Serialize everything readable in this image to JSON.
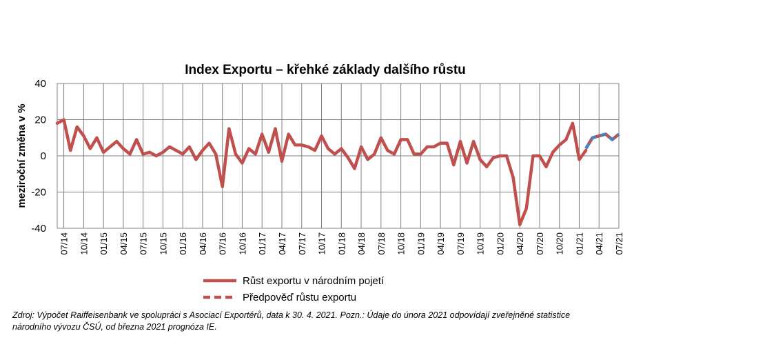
{
  "chart_data": {
    "type": "line",
    "title": "Index Exportu – křehké základy dalšího růstu",
    "ylabel": "meziroční změna v %",
    "xlabel": "",
    "ylim": [
      -40,
      40
    ],
    "yticks": [
      "40",
      "20",
      "0",
      "-20",
      "-40"
    ],
    "xticks": [
      "07/14",
      "10/14",
      "01/15",
      "04/15",
      "07/15",
      "10/15",
      "01/16",
      "04/16",
      "07/16",
      "10/16",
      "01/17",
      "04/17",
      "07/17",
      "10/17",
      "01/18",
      "04/18",
      "07/18",
      "10/18",
      "01/19",
      "04/19",
      "07/19",
      "10/19",
      "01/20",
      "04/20",
      "07/20",
      "10/20",
      "01/21",
      "04/21",
      "07/21"
    ],
    "grid": "vertical and horizontal",
    "legend_position": "bottom",
    "colors": {
      "actual": "#C0504D",
      "forecast": "#4F81BD"
    },
    "series": [
      {
        "name": "Růst exportu v národním pojetí",
        "style": "solid",
        "x": [
          "06/14",
          "07/14",
          "08/14",
          "09/14",
          "10/14",
          "11/14",
          "12/14",
          "01/15",
          "02/15",
          "03/15",
          "04/15",
          "05/15",
          "06/15",
          "07/15",
          "08/15",
          "09/15",
          "10/15",
          "11/15",
          "12/15",
          "01/16",
          "02/16",
          "03/16",
          "04/16",
          "05/16",
          "06/16",
          "07/16",
          "08/16",
          "09/16",
          "10/16",
          "11/16",
          "12/16",
          "01/17",
          "02/17",
          "03/17",
          "04/17",
          "05/17",
          "06/17",
          "07/17",
          "08/17",
          "09/17",
          "10/17",
          "11/17",
          "12/17",
          "01/18",
          "02/18",
          "03/18",
          "04/18",
          "05/18",
          "06/18",
          "07/18",
          "08/18",
          "09/18",
          "10/18",
          "11/18",
          "12/18",
          "01/19",
          "02/19",
          "03/19",
          "04/19",
          "05/19",
          "06/19",
          "07/19",
          "08/19",
          "09/19",
          "10/19",
          "11/19",
          "12/19",
          "01/20",
          "02/20",
          "03/20",
          "04/20",
          "05/20",
          "06/20",
          "07/20",
          "08/20",
          "09/20",
          "10/20",
          "11/20",
          "12/20",
          "01/21",
          "02/21"
        ],
        "values": [
          18,
          20,
          3,
          16,
          11,
          4,
          10,
          2,
          5,
          8,
          4,
          1,
          9,
          1,
          2,
          0,
          2,
          5,
          3,
          1,
          5,
          -2,
          3,
          7,
          1,
          -17,
          15,
          1,
          -4,
          4,
          1,
          12,
          2,
          15,
          -3,
          12,
          6,
          6,
          5,
          3,
          11,
          4,
          1,
          4,
          -1,
          -7,
          5,
          -2,
          1,
          10,
          3,
          1,
          9,
          9,
          1,
          1,
          5,
          5,
          7,
          7,
          -5,
          8,
          -4,
          8,
          -2,
          -6,
          -1,
          0,
          0,
          -12,
          -38,
          -29,
          0,
          0,
          -6,
          2,
          6,
          9,
          18,
          -2,
          3
        ]
      },
      {
        "name": "Předpověď růstu exportu",
        "style": "dashed",
        "x": [
          "02/21",
          "03/21",
          "04/21",
          "05/21",
          "06/21",
          "07/21"
        ],
        "values": [
          4,
          10,
          11,
          12,
          9,
          12
        ]
      }
    ]
  },
  "source_lines": [
    "Zdroj: Výpočet Raiffeisenbank ve spolupráci s Asociací Exportérů, data k 30. 4. 2021. Pozn.: Údaje do února 2021 odpovídají zveřejněné statistice",
    "národního vývozu ČSÚ, od března 2021 prognóza IE."
  ]
}
